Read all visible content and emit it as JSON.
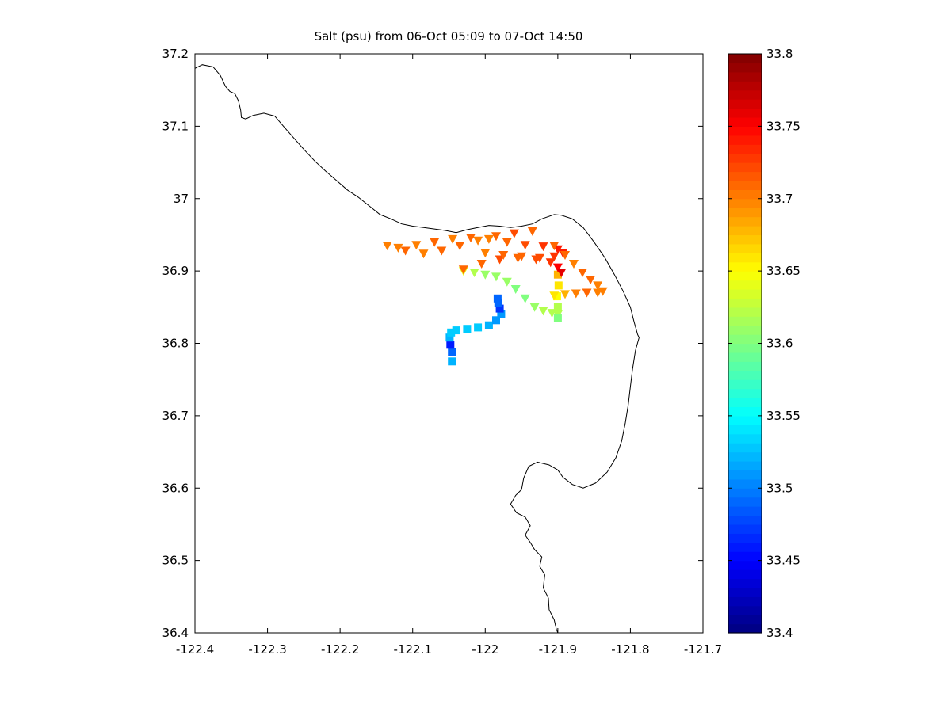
{
  "chart_data": {
    "type": "scatter",
    "title": "Salt (psu) from 06-Oct 05:09 to 07-Oct 14:50",
    "xlabel": "",
    "ylabel": "",
    "xlim": [
      -122.4,
      -121.7
    ],
    "ylim": [
      36.4,
      37.2
    ],
    "xticks": [
      "-122.4",
      "-122.3",
      "-122.2",
      "-122.1",
      "-122",
      "-121.9",
      "-121.8",
      "-121.7"
    ],
    "yticks": [
      "36.4",
      "36.5",
      "36.6",
      "36.7",
      "36.8",
      "36.9",
      "37",
      "37.1",
      "37.2"
    ],
    "grid": false,
    "colorbar": {
      "min": 33.4,
      "max": 33.8,
      "colormap": "jet",
      "ticks": [
        "33.4",
        "33.45",
        "33.5",
        "33.55",
        "33.6",
        "33.65",
        "33.7",
        "33.75",
        "33.8"
      ]
    },
    "coastline": [
      [
        -122.4,
        37.18
      ],
      [
        -122.39,
        37.185
      ],
      [
        -122.375,
        37.182
      ],
      [
        -122.365,
        37.17
      ],
      [
        -122.358,
        37.155
      ],
      [
        -122.352,
        37.148
      ],
      [
        -122.345,
        37.145
      ],
      [
        -122.34,
        37.135
      ],
      [
        -122.337,
        37.122
      ],
      [
        -122.336,
        37.112
      ],
      [
        -122.33,
        37.11
      ],
      [
        -122.32,
        37.115
      ],
      [
        -122.305,
        37.118
      ],
      [
        -122.29,
        37.114
      ],
      [
        -122.278,
        37.1
      ],
      [
        -122.265,
        37.085
      ],
      [
        -122.25,
        37.068
      ],
      [
        -122.235,
        37.052
      ],
      [
        -122.22,
        37.038
      ],
      [
        -122.205,
        37.025
      ],
      [
        -122.19,
        37.012
      ],
      [
        -122.175,
        37.002
      ],
      [
        -122.16,
        36.99
      ],
      [
        -122.145,
        36.978
      ],
      [
        -122.13,
        36.972
      ],
      [
        -122.115,
        36.965
      ],
      [
        -122.1,
        36.962
      ],
      [
        -122.085,
        36.96
      ],
      [
        -122.07,
        36.958
      ],
      [
        -122.055,
        36.956
      ],
      [
        -122.04,
        36.953
      ],
      [
        -122.025,
        36.957
      ],
      [
        -122.01,
        36.96
      ],
      [
        -121.995,
        36.963
      ],
      [
        -121.98,
        36.962
      ],
      [
        -121.965,
        36.96
      ],
      [
        -121.95,
        36.962
      ],
      [
        -121.935,
        36.965
      ],
      [
        -121.922,
        36.972
      ],
      [
        -121.905,
        36.978
      ],
      [
        -121.895,
        36.977
      ],
      [
        -121.88,
        36.972
      ],
      [
        -121.865,
        36.96
      ],
      [
        -121.85,
        36.94
      ],
      [
        -121.835,
        36.918
      ],
      [
        -121.822,
        36.895
      ],
      [
        -121.81,
        36.872
      ],
      [
        -121.8,
        36.85
      ],
      [
        -121.795,
        36.83
      ],
      [
        -121.79,
        36.812
      ],
      [
        -121.788,
        36.808
      ],
      [
        -121.793,
        36.79
      ],
      [
        -121.797,
        36.765
      ],
      [
        -121.8,
        36.74
      ],
      [
        -121.803,
        36.715
      ],
      [
        -121.807,
        36.69
      ],
      [
        -121.812,
        36.665
      ],
      [
        -121.82,
        36.642
      ],
      [
        -121.832,
        36.622
      ],
      [
        -121.848,
        36.607
      ],
      [
        -121.865,
        36.6
      ],
      [
        -121.88,
        36.605
      ],
      [
        -121.893,
        36.615
      ],
      [
        -121.9,
        36.625
      ],
      [
        -121.912,
        36.632
      ],
      [
        -121.928,
        36.636
      ],
      [
        -121.94,
        36.63
      ],
      [
        -121.947,
        36.614
      ],
      [
        -121.95,
        36.598
      ],
      [
        -121.958,
        36.59
      ],
      [
        -121.965,
        36.578
      ],
      [
        -121.957,
        36.566
      ],
      [
        -121.945,
        36.56
      ],
      [
        -121.938,
        36.548
      ],
      [
        -121.945,
        36.535
      ],
      [
        -121.938,
        36.525
      ],
      [
        -121.932,
        36.515
      ],
      [
        -121.922,
        36.505
      ],
      [
        -121.925,
        36.492
      ],
      [
        -121.918,
        36.48
      ],
      [
        -121.92,
        36.462
      ],
      [
        -121.913,
        36.448
      ],
      [
        -121.912,
        36.432
      ],
      [
        -121.905,
        36.418
      ],
      [
        -121.902,
        36.405
      ],
      [
        -121.9,
        36.4
      ]
    ],
    "series": [
      {
        "marker": "square",
        "x": [
          -122.046,
          -122.046,
          -122.048,
          -122.049,
          -122.047,
          -122.04,
          -122.025,
          -122.01,
          -121.995,
          -121.985,
          -121.978,
          -121.98,
          -121.982,
          -121.983
        ],
        "y": [
          36.775,
          36.788,
          36.798,
          36.808,
          36.815,
          36.818,
          36.82,
          36.822,
          36.825,
          36.832,
          36.84,
          36.848,
          36.856,
          36.862
        ],
        "values": [
          33.52,
          33.49,
          33.46,
          33.52,
          33.53,
          33.53,
          33.53,
          33.53,
          33.52,
          33.51,
          33.51,
          33.47,
          33.49,
          33.49
        ]
      },
      {
        "marker": "triangle",
        "x": [
          -122.03,
          -122.015,
          -122.0,
          -121.985,
          -121.97,
          -121.958,
          -121.945,
          -121.932,
          -121.92,
          -121.908,
          -121.9
        ],
        "y": [
          36.9,
          36.898,
          36.895,
          36.892,
          36.885,
          36.875,
          36.862,
          36.85,
          36.845,
          36.842,
          36.84
        ],
        "values": [
          33.64,
          33.62,
          33.61,
          33.61,
          33.61,
          33.6,
          33.6,
          33.61,
          33.62,
          33.62,
          33.62
        ]
      },
      {
        "marker": "square",
        "x": [
          -121.9,
          -121.9,
          -121.901,
          -121.899,
          -121.9
        ],
        "y": [
          36.835,
          36.85,
          36.865,
          36.88,
          36.895
        ],
        "values": [
          33.6,
          33.62,
          33.65,
          33.66,
          33.68
        ]
      },
      {
        "marker": "triangle",
        "x": [
          -122.135,
          -122.11,
          -122.085,
          -122.06,
          -122.035,
          -122.01,
          -121.985,
          -121.96,
          -121.935
        ],
        "y": [
          36.935,
          36.928,
          36.924,
          36.928,
          36.935,
          36.942,
          36.948,
          36.952,
          36.955
        ],
        "values": [
          33.7,
          33.71,
          33.7,
          33.71,
          33.71,
          33.7,
          33.71,
          33.72,
          33.71
        ]
      },
      {
        "marker": "triangle",
        "x": [
          -122.12,
          -122.095,
          -122.07,
          -122.045,
          -122.02,
          -121.995,
          -121.97,
          -121.945,
          -121.92,
          -121.9
        ],
        "y": [
          36.932,
          36.936,
          36.94,
          36.944,
          36.946,
          36.944,
          36.94,
          36.936,
          36.934,
          36.93
        ],
        "values": [
          33.7,
          33.7,
          33.71,
          33.7,
          33.71,
          33.7,
          33.71,
          33.72,
          33.73,
          33.74
        ]
      },
      {
        "marker": "triangle",
        "x": [
          -122.03,
          -122.005,
          -121.98,
          -121.955,
          -121.93,
          -121.91,
          -121.9,
          -121.895
        ],
        "y": [
          36.902,
          36.91,
          36.916,
          36.918,
          36.916,
          36.912,
          36.905,
          36.898
        ],
        "values": [
          33.71,
          33.71,
          33.72,
          33.71,
          33.72,
          33.73,
          33.75,
          33.76
        ]
      },
      {
        "marker": "triangle",
        "x": [
          -122.0,
          -121.975,
          -121.95,
          -121.925,
          -121.905,
          -121.893
        ],
        "y": [
          36.925,
          36.922,
          36.92,
          36.918,
          36.92,
          36.925
        ],
        "values": [
          33.7,
          33.71,
          33.71,
          33.72,
          33.73,
          33.74
        ]
      },
      {
        "marker": "triangle",
        "x": [
          -121.905,
          -121.89,
          -121.878,
          -121.866,
          -121.855,
          -121.845,
          -121.838
        ],
        "y": [
          36.935,
          36.922,
          36.91,
          36.898,
          36.888,
          36.88,
          36.872
        ],
        "values": [
          33.71,
          33.71,
          33.7,
          33.71,
          33.71,
          33.7,
          33.7
        ]
      },
      {
        "marker": "triangle",
        "x": [
          -121.905,
          -121.89,
          -121.875,
          -121.86,
          -121.845
        ],
        "y": [
          36.866,
          36.868,
          36.869,
          36.87,
          36.87
        ],
        "values": [
          33.66,
          33.68,
          33.7,
          33.71,
          33.7
        ]
      }
    ]
  }
}
